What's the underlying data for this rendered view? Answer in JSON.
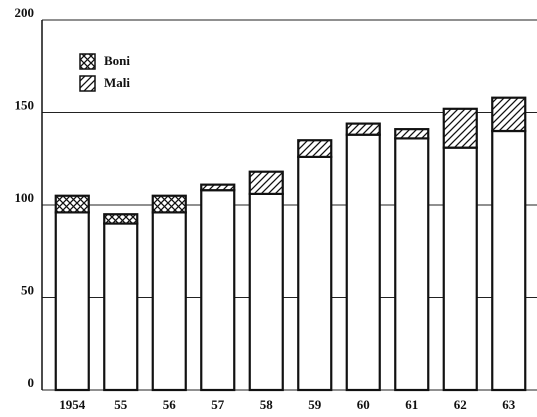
{
  "chart_data": {
    "type": "stacked_bar",
    "categories": [
      "1954",
      "55",
      "56",
      "57",
      "58",
      "59",
      "60",
      "61",
      "62",
      "63"
    ],
    "series": [
      {
        "color": "#ffffff",
        "pattern": "none",
        "values": [
          96,
          90,
          96,
          108,
          106,
          126,
          138,
          136,
          131,
          140
        ]
      },
      {
        "name": "Boni",
        "color": "#ffffff",
        "pattern": "crosshatch",
        "values": [
          9,
          5,
          9,
          null,
          null,
          null,
          null,
          null,
          null,
          null
        ]
      },
      {
        "name": "Mali",
        "color": "#ffffff",
        "pattern": "diagonal",
        "values": [
          null,
          null,
          null,
          3,
          12,
          9,
          6,
          5,
          21,
          18
        ]
      }
    ],
    "ylim": [
      0,
      200
    ],
    "yticks": [
      0,
      50,
      100,
      150,
      200
    ],
    "grid": true,
    "legend": "upper left"
  }
}
